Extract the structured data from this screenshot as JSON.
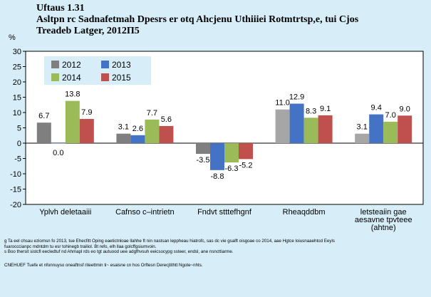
{
  "header": {
    "figure_number": "Uftaus 1.31",
    "title_line1": "Asltpn rc Sadnafetmah Dpesrs er otq Ahcjenu Uthiiiei Rotmtrtsp,e, tui Cjos",
    "title_line2": "Treadeb Latger, 2012П5"
  },
  "colors": {
    "2012": "#7f7f7f",
    "2013": "#4472c4",
    "2014": "#9bbb59",
    "2015": "#c0504d",
    "category_2012_alt": "#a6a6a6",
    "background": "#d7eef9",
    "plot_background": "#ffffff"
  },
  "chart_data": {
    "type": "bar",
    "title": "Asltpn rc Sadnafetmah Dpesrs er otq Ahcjenu Uthiiiei Rotmtrtsp,e, tui Cjos Treadeb Latger, 2012П5",
    "ylabel": "%",
    "xlabel": "",
    "ylim": [
      -20,
      30
    ],
    "yticks": [
      -20,
      -15,
      -10,
      -5,
      0,
      5,
      10,
      15,
      20,
      25,
      30
    ],
    "grid": false,
    "legend_position": "top-left",
    "categories": [
      "Yplvh deletaaiii",
      "Cafnso c–intrietn",
      "Fndvt stttefhgnf",
      "Rheaqddbm",
      "letsteaiin gae aesavne tpvteee (ahtne)"
    ],
    "category_label_lines": [
      [
        "Yplvh deletaaiii"
      ],
      [
        "Cafnso c–intrietn"
      ],
      [
        "Fndvt stttefhgnf"
      ],
      [
        "Rheaqddbm"
      ],
      [
        "letsteaiin gae",
        "aesavne tpvteee",
        "(ahtne)"
      ]
    ],
    "series": [
      {
        "name": "2012",
        "values": [
          6.7,
          3.1,
          -3.5,
          11.0,
          3.1
        ],
        "labels": [
          "6.7",
          "3.1",
          "-3.5",
          "11.0",
          "3.1"
        ]
      },
      {
        "name": "2013",
        "values": [
          0.0,
          2.6,
          -8.8,
          12.9,
          9.4
        ],
        "labels": [
          "0.0",
          "2.6",
          "-8.8",
          "12.9",
          "9.4"
        ]
      },
      {
        "name": "2014",
        "values": [
          13.8,
          7.7,
          -6.3,
          8.3,
          7.0
        ],
        "labels": [
          "13.8",
          "7.7",
          "-6.3",
          "8.3",
          "7.0"
        ]
      },
      {
        "name": "2015",
        "values": [
          7.9,
          5.6,
          -5.2,
          9.1,
          9.0
        ],
        "labels": [
          "7.9",
          "5.6",
          "-5.2",
          "9.1",
          "9.0"
        ]
      }
    ]
  },
  "notes": {
    "line1": "g Ta eel chsau eziomsn fo 2013, tue Ehecfitt Oping eaetictnloae llahhe ft nin nastsan leppheau hiatrofc, sas dc vie gsalft oisgoae co 2014, aae Hgtce loiusnaaehtod Eeyls",
    "line2": "fuarocccianpc mdntdm tu esr tohinegb trailiol. Bt refo, elh llaa golcffgsiumvoin.",
    "line3": "s Boo thersit sistcfl eecledtuf nd Ahmapl rds eo tgt autuood uee adgfhvsuh eeicsocypg ssteer, endsl, ane nsncttiarme.",
    "source": "CNEHUEF Tuefe et nfonnuyso oneaftnsf riteettmin ti~ esaisne cn hos Orftesn Derecjtithtt Ngote~nhts."
  }
}
